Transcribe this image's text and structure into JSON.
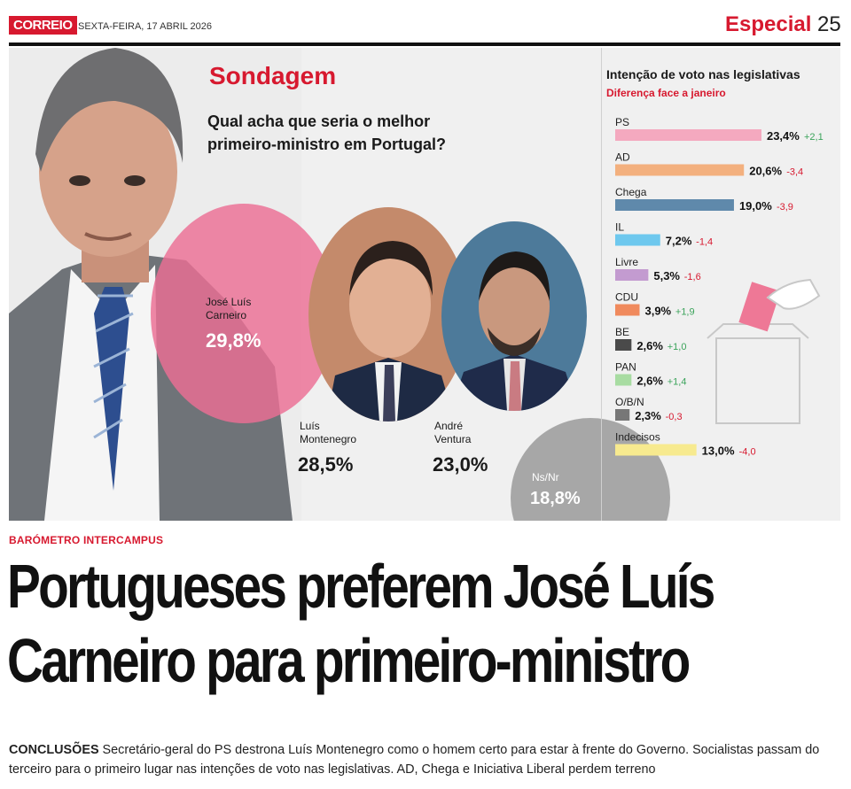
{
  "header": {
    "logo": "CORREIO",
    "date": "SEXTA-FEIRA, 17 ABRIL 2026",
    "section": "Especial",
    "page_number": "25"
  },
  "poll": {
    "title": "Sondagem",
    "question": "Qual acha que seria o melhor primeiro-ministro em Portugal?",
    "candidates": [
      {
        "name": "José Luís Carneiro",
        "percent": "29,8%"
      },
      {
        "name": "Luís Montenegro",
        "percent": "28,5%"
      },
      {
        "name": "André Ventura",
        "percent": "23,0%"
      },
      {
        "name": "Ns/Nr",
        "percent": "18,8%"
      }
    ]
  },
  "chart_data": {
    "type": "bar",
    "title": "Intenção de voto nas legislativas",
    "subtitle": "Diferença face a janeiro",
    "orientation": "horizontal",
    "categories": [
      "PS",
      "AD",
      "Chega",
      "IL",
      "Livre",
      "CDU",
      "BE",
      "PAN",
      "O/B/N",
      "Indecisos"
    ],
    "values": [
      23.4,
      20.6,
      19.0,
      7.2,
      5.3,
      3.9,
      2.6,
      2.6,
      2.3,
      13.0
    ],
    "value_labels": [
      "23,4%",
      "20,6%",
      "19,0%",
      "7,2%",
      "5,3%",
      "3,9%",
      "2,6%",
      "2,6%",
      "2,3%",
      "13,0%"
    ],
    "change_labels": [
      "+2,1",
      "-3,4",
      "-3,9",
      "-1,4",
      "-1,6",
      "+1,9",
      "+1,0",
      "+1,4",
      "-0,3",
      "-4,0"
    ],
    "colors": [
      "#f4a9bf",
      "#f3b07e",
      "#5f89ab",
      "#6ec8ee",
      "#c39bd0",
      "#f08a5d",
      "#4a4a4a",
      "#a8dca2",
      "#777777",
      "#f7ea8f"
    ],
    "change_colors": {
      "positive": "#3aa35a",
      "negative": "#d7192f"
    }
  },
  "article": {
    "kicker": "BARÓMETRO INTERCAMPUS",
    "headline_line1": "Portugueses preferem José Luís",
    "headline_line2": "Carneiro para primeiro-ministro",
    "lead_label": "CONCLUSÕES",
    "body": "Secretário-geral do PS destrona Luís Montenegro como o homem certo para estar à frente do Governo. Socialistas passam do terceiro para o primeiro lugar nas intenções de voto nas legislativas. AD, Chega e Iniciativa Liberal perdem terreno"
  }
}
